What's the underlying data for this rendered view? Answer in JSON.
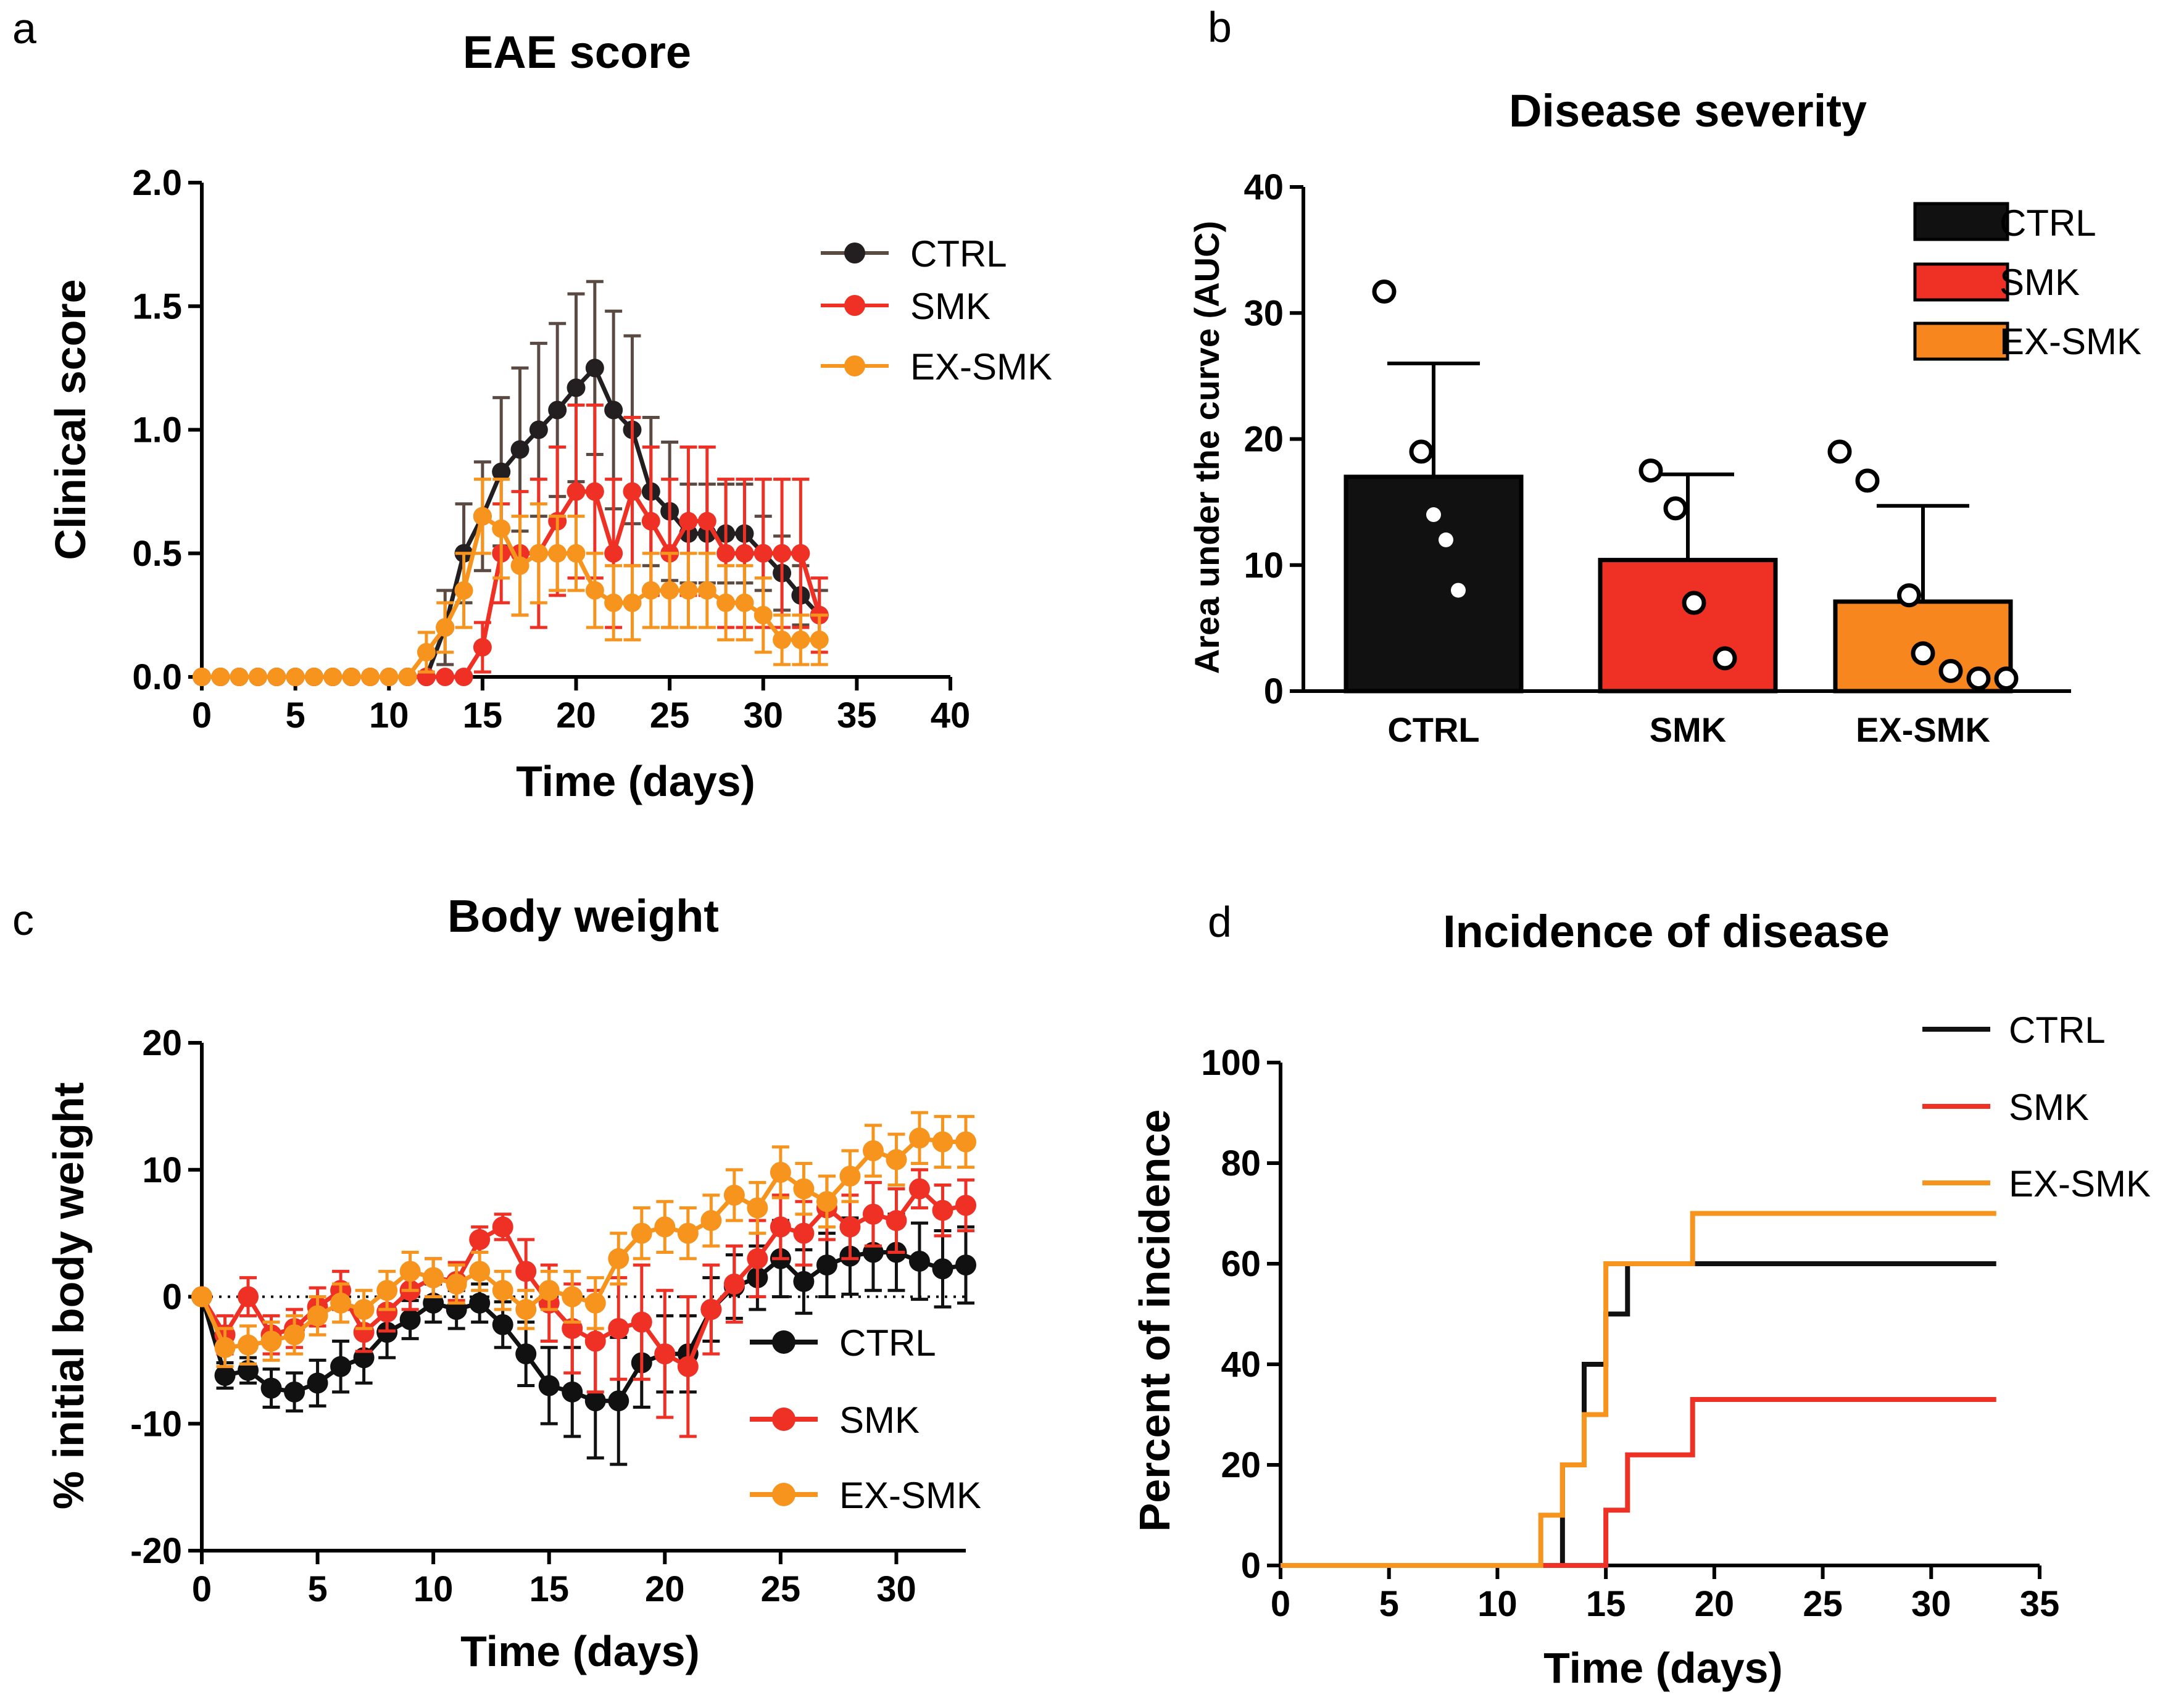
{
  "chart_data": [
    {
      "panel": "a",
      "type": "line",
      "title": "EAE score",
      "xlabel": "Time (days)",
      "ylabel": "Clinical score",
      "xlim": [
        0,
        40
      ],
      "ylim": [
        0,
        2
      ],
      "xticks": [
        0,
        5,
        10,
        15,
        20,
        25,
        30,
        35,
        40
      ],
      "yticks": [
        0.0,
        0.5,
        1.0,
        1.5,
        2.0
      ],
      "ytick_labels": [
        "0.0",
        "0.5",
        "1.0",
        "1.5",
        "2.0"
      ],
      "legend": "top-right",
      "series": [
        {
          "name": "CTRL",
          "color": "#231f20",
          "err_color": "#5a4a42",
          "x": [
            0,
            1,
            2,
            3,
            4,
            5,
            6,
            7,
            8,
            9,
            10,
            11,
            12,
            13,
            14,
            15,
            16,
            17,
            18,
            19,
            20,
            21,
            22,
            23,
            24,
            25,
            26,
            27,
            28,
            29,
            30,
            31,
            32,
            33
          ],
          "y": [
            0,
            0,
            0,
            0,
            0,
            0,
            0,
            0,
            0,
            0,
            0,
            0,
            0,
            0.2,
            0.5,
            0.65,
            0.83,
            0.92,
            1.0,
            1.08,
            1.17,
            1.25,
            1.08,
            1.0,
            0.75,
            0.67,
            0.58,
            0.58,
            0.58,
            0.58,
            0.5,
            0.42,
            0.33,
            0.25
          ],
          "err": [
            0,
            0,
            0,
            0,
            0,
            0,
            0,
            0,
            0,
            0,
            0,
            0,
            0,
            0.15,
            0.2,
            0.22,
            0.3,
            0.33,
            0.35,
            0.35,
            0.38,
            0.35,
            0.4,
            0.38,
            0.3,
            0.28,
            0.2,
            0.2,
            0.2,
            0.2,
            0.15,
            0.15,
            0.12,
            0.1
          ]
        },
        {
          "name": "SMK",
          "color": "#ee3124",
          "err_color": "#ee3124",
          "x": [
            0,
            1,
            2,
            3,
            4,
            5,
            6,
            7,
            8,
            9,
            10,
            11,
            12,
            13,
            14,
            15,
            16,
            17,
            18,
            19,
            20,
            21,
            22,
            23,
            24,
            25,
            26,
            27,
            28,
            29,
            30,
            31,
            32,
            33
          ],
          "y": [
            0,
            0,
            0,
            0,
            0,
            0,
            0,
            0,
            0,
            0,
            0,
            0,
            0,
            0,
            0,
            0.12,
            0.5,
            0.5,
            0.5,
            0.63,
            0.75,
            0.75,
            0.5,
            0.75,
            0.63,
            0.5,
            0.63,
            0.63,
            0.5,
            0.5,
            0.5,
            0.5,
            0.5,
            0.25
          ],
          "err": [
            0,
            0,
            0,
            0,
            0,
            0,
            0,
            0,
            0,
            0,
            0,
            0,
            0,
            0,
            0,
            0.1,
            0.2,
            0.25,
            0.3,
            0.3,
            0.35,
            0.35,
            0.3,
            0.3,
            0.3,
            0.3,
            0.3,
            0.3,
            0.3,
            0.3,
            0.3,
            0.3,
            0.3,
            0.15
          ]
        },
        {
          "name": "EX-SMK",
          "color": "#f7941d",
          "err_color": "#f7941d",
          "x": [
            0,
            1,
            2,
            3,
            4,
            5,
            6,
            7,
            8,
            9,
            10,
            11,
            12,
            13,
            14,
            15,
            16,
            17,
            18,
            19,
            20,
            21,
            22,
            23,
            24,
            25,
            26,
            27,
            28,
            29,
            30,
            31,
            32,
            33
          ],
          "y": [
            0,
            0,
            0,
            0,
            0,
            0,
            0,
            0,
            0,
            0,
            0,
            0,
            0.1,
            0.2,
            0.35,
            0.65,
            0.6,
            0.45,
            0.5,
            0.5,
            0.5,
            0.35,
            0.3,
            0.3,
            0.35,
            0.35,
            0.35,
            0.35,
            0.3,
            0.3,
            0.25,
            0.15,
            0.15,
            0.15
          ],
          "err": [
            0,
            0,
            0,
            0,
            0,
            0,
            0,
            0,
            0,
            0,
            0,
            0,
            0.08,
            0.1,
            0.15,
            0.15,
            0.2,
            0.2,
            0.2,
            0.15,
            0.15,
            0.15,
            0.15,
            0.15,
            0.15,
            0.15,
            0.15,
            0.15,
            0.15,
            0.15,
            0.15,
            0.1,
            0.1,
            0.1
          ]
        }
      ]
    },
    {
      "panel": "b",
      "type": "bar",
      "title": "Disease severity",
      "xlabel": "",
      "ylabel": "Area under the curve (AUC)",
      "ylim": [
        0,
        40
      ],
      "yticks": [
        0,
        10,
        20,
        30,
        40
      ],
      "categories": [
        "CTRL",
        "SMK",
        "EX-SMK"
      ],
      "values": [
        17.0,
        10.4,
        7.1
      ],
      "errors": [
        9.0,
        6.8,
        7.6
      ],
      "points": [
        [
          31.7,
          19.0,
          14.0,
          12.0,
          8.0
        ],
        [
          17.5,
          14.5,
          7.0,
          2.6
        ],
        [
          19.0,
          16.7,
          7.6,
          3.0,
          1.6,
          1.0,
          1.0
        ]
      ],
      "point_style": [
        [
          "hollow",
          "hollow",
          "filled",
          "filled",
          "filled"
        ],
        [
          "hollow",
          "hollow",
          "hollow",
          "hollow"
        ],
        [
          "hollow",
          "hollow",
          "hollow",
          "hollow",
          "hollow",
          "hollow",
          "hollow"
        ]
      ],
      "colors": [
        "#111111",
        "#ee3124",
        "#f7861e"
      ],
      "legend": "top-right",
      "legend_labels": [
        "CTRL",
        "SMK",
        "EX-SMK"
      ]
    },
    {
      "panel": "c",
      "type": "line",
      "title": "Body weight",
      "xlabel": "Time (days)",
      "ylabel": "% initial body weight",
      "xlim": [
        0,
        33
      ],
      "ylim": [
        -20,
        20
      ],
      "xticks": [
        0,
        5,
        10,
        15,
        20,
        25,
        30
      ],
      "yticks": [
        -20,
        -10,
        0,
        10,
        20
      ],
      "baseline": 0,
      "legend": "bottom-right",
      "series": [
        {
          "name": "CTRL",
          "color": "#111111",
          "x": [
            0,
            1,
            2,
            3,
            4,
            5,
            6,
            7,
            8,
            9,
            10,
            11,
            12,
            13,
            14,
            15,
            16,
            17,
            18,
            19,
            20,
            21,
            22,
            23,
            24,
            25,
            26,
            27,
            28,
            29,
            30,
            31,
            32,
            33
          ],
          "y": [
            0,
            -6.2,
            -5.8,
            -7.2,
            -7.5,
            -6.8,
            -5.5,
            -4.8,
            -2.8,
            -1.8,
            -0.5,
            -1.0,
            -0.5,
            -2.2,
            -4.5,
            -7.0,
            -7.5,
            -8.2,
            -8.2,
            -5.2,
            -4.5,
            -4.5,
            -1.0,
            0.8,
            1.5,
            3.0,
            1.2,
            2.5,
            3.2,
            3.5,
            3.5,
            2.8,
            2.2,
            2.5
          ],
          "err": [
            0,
            1.0,
            1.0,
            1.5,
            1.5,
            1.8,
            2.0,
            2.0,
            2.0,
            1.5,
            1.5,
            1.5,
            1.5,
            1.8,
            2.5,
            3.0,
            3.5,
            4.5,
            5.0,
            3.5,
            3.0,
            3.0,
            2.5,
            2.5,
            2.5,
            3.0,
            2.5,
            2.5,
            3.0,
            3.0,
            3.0,
            3.0,
            3.0,
            3.0
          ]
        },
        {
          "name": "SMK",
          "color": "#ee3124",
          "x": [
            0,
            1,
            2,
            3,
            4,
            5,
            6,
            7,
            8,
            9,
            10,
            11,
            12,
            13,
            14,
            15,
            16,
            17,
            18,
            19,
            20,
            21,
            22,
            23,
            24,
            25,
            26,
            27,
            28,
            29,
            30,
            31,
            32,
            33
          ],
          "y": [
            0,
            -3.0,
            0.0,
            -3.0,
            -2.5,
            -0.8,
            0.5,
            -2.8,
            -1.2,
            0.5,
            1.5,
            1.2,
            4.5,
            5.5,
            2.0,
            -0.5,
            -2.5,
            -3.5,
            -2.5,
            -2.0,
            -4.5,
            -5.5,
            -1.0,
            1.0,
            3.0,
            5.5,
            5.0,
            7.0,
            5.5,
            6.5,
            6.0,
            8.5,
            6.8,
            7.2
          ],
          "err": [
            0,
            1.5,
            1.5,
            1.5,
            1.5,
            1.5,
            1.5,
            1.5,
            1.5,
            1.5,
            1.5,
            1.5,
            1.0,
            1.0,
            2.5,
            3.0,
            3.5,
            4.0,
            4.0,
            4.5,
            5.0,
            5.5,
            3.5,
            3.0,
            3.0,
            2.5,
            2.5,
            2.5,
            2.5,
            2.5,
            2.5,
            1.5,
            2.0,
            2.0
          ]
        },
        {
          "name": "EX-SMK",
          "color": "#f7941d",
          "x": [
            0,
            1,
            2,
            3,
            4,
            5,
            6,
            7,
            8,
            9,
            10,
            11,
            12,
            13,
            14,
            15,
            16,
            17,
            18,
            19,
            20,
            21,
            22,
            23,
            24,
            25,
            26,
            27,
            28,
            29,
            30,
            31,
            32,
            33
          ],
          "y": [
            0,
            -4.0,
            -3.8,
            -3.5,
            -3.0,
            -1.5,
            -0.5,
            -1.0,
            0.5,
            2.0,
            1.5,
            1.0,
            2.0,
            0.5,
            -1.0,
            0.5,
            0.0,
            -0.5,
            3.0,
            5.0,
            5.5,
            5.0,
            6.0,
            8.0,
            7.0,
            9.8,
            8.5,
            7.5,
            9.5,
            11.5,
            10.8,
            12.5,
            12.2,
            12.2
          ],
          "err": [
            0,
            1.5,
            1.5,
            1.5,
            1.5,
            1.5,
            1.5,
            1.5,
            1.5,
            1.5,
            1.5,
            1.5,
            1.5,
            1.5,
            1.5,
            1.5,
            2.0,
            2.0,
            2.0,
            2.0,
            2.0,
            2.0,
            2.0,
            2.0,
            2.0,
            2.0,
            2.0,
            2.0,
            2.0,
            2.0,
            2.0,
            2.0,
            2.0,
            2.0
          ]
        }
      ]
    },
    {
      "panel": "d",
      "type": "line",
      "subtype": "step",
      "title": "Incidence of disease",
      "xlabel": "Time (days)",
      "ylabel": "Percent of incidence",
      "xlim": [
        0,
        35
      ],
      "ylim": [
        0,
        100
      ],
      "xticks": [
        0,
        5,
        10,
        15,
        20,
        25,
        30,
        35
      ],
      "yticks": [
        0,
        20,
        40,
        60,
        80,
        100
      ],
      "legend": "top-right",
      "series": [
        {
          "name": "CTRL",
          "color": "#111111",
          "x": [
            0,
            13,
            14,
            15,
            16,
            33
          ],
          "y": [
            0,
            20,
            40,
            50,
            60,
            60
          ]
        },
        {
          "name": "SMK",
          "color": "#ee3124",
          "x": [
            0,
            15,
            16,
            19,
            33
          ],
          "y": [
            0,
            11,
            22,
            33,
            33
          ]
        },
        {
          "name": "EX-SMK",
          "color": "#f7941d",
          "x": [
            0,
            12,
            13,
            14,
            15,
            19,
            33
          ],
          "y": [
            0,
            10,
            20,
            30,
            60,
            70,
            70
          ]
        }
      ]
    }
  ],
  "panel_letters": [
    "a",
    "b",
    "c",
    "d"
  ]
}
